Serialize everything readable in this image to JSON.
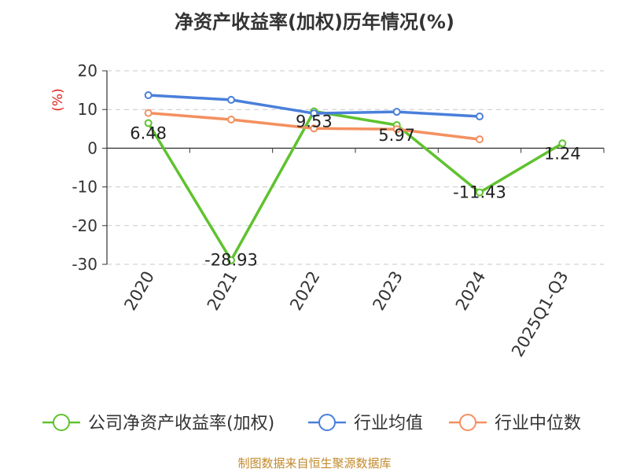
{
  "chart_data": {
    "type": "line",
    "title": "净资产收益率(加权)历年情况(%)",
    "ylabel": "(%)",
    "xlabel": "",
    "categories": [
      "2020",
      "2021",
      "2022",
      "2023",
      "2024",
      "2025Q1-Q3"
    ],
    "ylim": [
      -30,
      20
    ],
    "yticks": [
      20,
      10,
      0,
      -10,
      -20,
      -30
    ],
    "grid": true,
    "legend_position": "bottom",
    "series": [
      {
        "name": "公司净资产收益率(加权)",
        "color": "#5fc22e",
        "values": [
          6.48,
          -28.93,
          9.53,
          5.97,
          -11.43,
          1.24
        ],
        "labels": [
          "6.48",
          "-28.93",
          "9.53",
          "5.97",
          "-11.43",
          "1.24"
        ]
      },
      {
        "name": "行业均值",
        "color": "#4a7fdb",
        "values": [
          13.7,
          12.5,
          9.0,
          9.4,
          8.2,
          null
        ]
      },
      {
        "name": "行业中位数",
        "color": "#f4905f",
        "values": [
          9.1,
          7.4,
          5.1,
          4.9,
          2.3,
          null
        ]
      }
    ]
  },
  "footer": {
    "source": "制图数据来自恒生聚源数据库"
  }
}
